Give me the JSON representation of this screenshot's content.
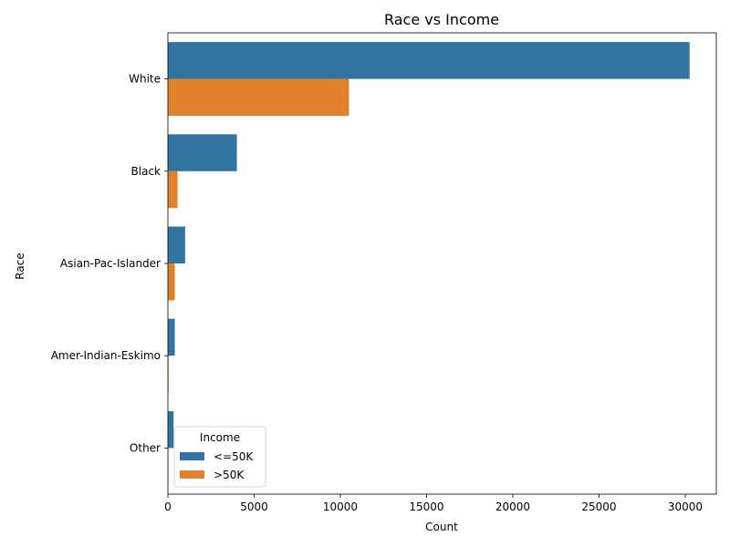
{
  "chart_data": {
    "type": "bar",
    "orientation": "horizontal",
    "title": "Race vs Income",
    "xlabel": "Count",
    "ylabel": "Race",
    "categories": [
      "White",
      "Black",
      "Asian-Pac-Islander",
      "Amer-Indian-Eskimo",
      "Other"
    ],
    "series": [
      {
        "name": "<=50K",
        "values": [
          30250,
          4000,
          1000,
          400,
          330
        ],
        "color": "#3274a1"
      },
      {
        "name": ">50K",
        "values": [
          10500,
          560,
          400,
          40,
          30
        ],
        "color": "#e1812c"
      }
    ],
    "xlim": [
      0,
      31800
    ],
    "xticks": [
      0,
      5000,
      10000,
      15000,
      20000,
      25000,
      30000
    ],
    "grid": false,
    "legend": {
      "title": "Income",
      "placement": "lower-left"
    }
  }
}
